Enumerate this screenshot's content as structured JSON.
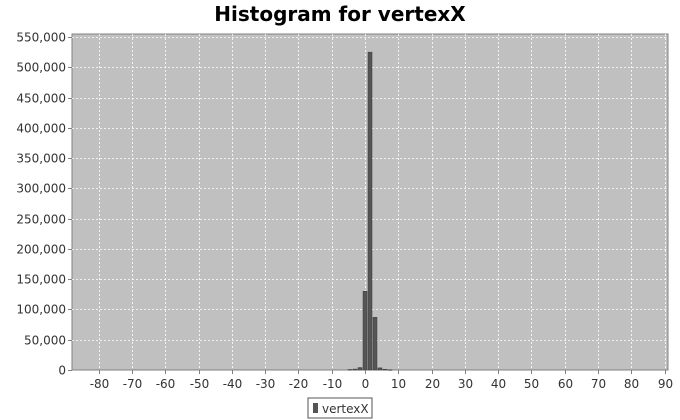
{
  "chart_data": {
    "type": "bar",
    "title": "Histogram for vertexX",
    "xlabel": "",
    "ylabel": "",
    "xlim": [
      -88,
      91
    ],
    "ylim": [
      0,
      555000
    ],
    "x_ticks": [
      -80,
      -70,
      -60,
      -50,
      -40,
      -30,
      -20,
      -10,
      0,
      10,
      20,
      30,
      40,
      50,
      60,
      70,
      80,
      90
    ],
    "y_ticks": [
      0,
      50000,
      100000,
      150000,
      200000,
      250000,
      300000,
      350000,
      400000,
      450000,
      500000,
      550000
    ],
    "y_tick_labels": [
      "0",
      "50,000",
      "100,000",
      "150,000",
      "200,000",
      "250,000",
      "300,000",
      "350,000",
      "400,000",
      "450,000",
      "500,000",
      "550,000"
    ],
    "grid": true,
    "legend": "bottom",
    "series": [
      {
        "name": "vertexX",
        "color": "#555555",
        "bin_width": 1.5,
        "bins": [
          {
            "x": -4.5,
            "value": 800
          },
          {
            "x": -3.0,
            "value": 1500
          },
          {
            "x": -1.5,
            "value": 4000
          },
          {
            "x": 0.0,
            "value": 130000
          },
          {
            "x": 1.5,
            "value": 525000
          },
          {
            "x": 3.0,
            "value": 87000
          },
          {
            "x": 4.5,
            "value": 3500
          },
          {
            "x": 6.0,
            "value": 1200
          },
          {
            "x": 7.5,
            "value": 400
          }
        ]
      }
    ]
  }
}
